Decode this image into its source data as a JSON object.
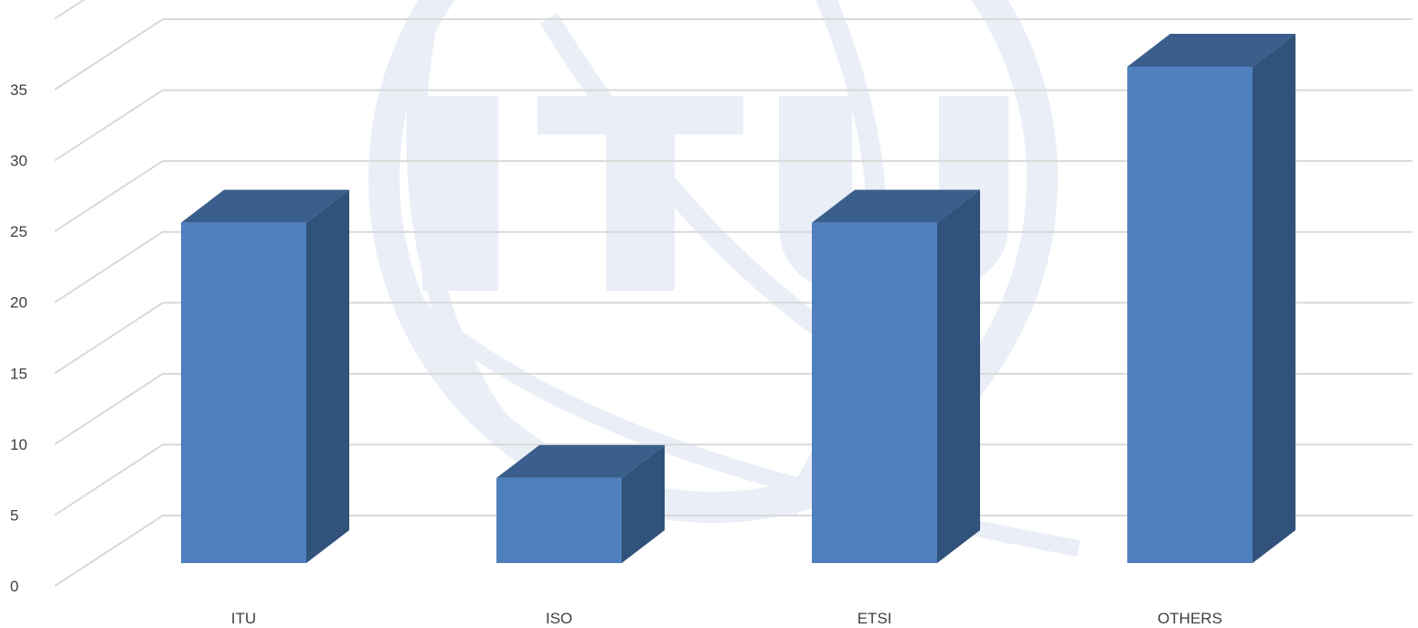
{
  "chart_data": {
    "type": "bar",
    "style": "3d-column",
    "categories": [
      "ITU",
      "ISO",
      "ETSI",
      "OTHERS"
    ],
    "values": [
      23,
      5,
      23,
      34
    ],
    "ylim": [
      0,
      40
    ],
    "yticks": [
      0,
      5,
      10,
      15,
      20,
      25,
      30,
      35
    ],
    "grid": true,
    "legend": "none",
    "title": "",
    "xlabel": "",
    "ylabel": "",
    "colors": {
      "bar_front": "#4e80bd",
      "bar_top": "#3a5f8c",
      "bar_side": "#31527a",
      "grid": "#d9d9d9",
      "text": "#404040",
      "watermark": "#e9eef7"
    }
  }
}
